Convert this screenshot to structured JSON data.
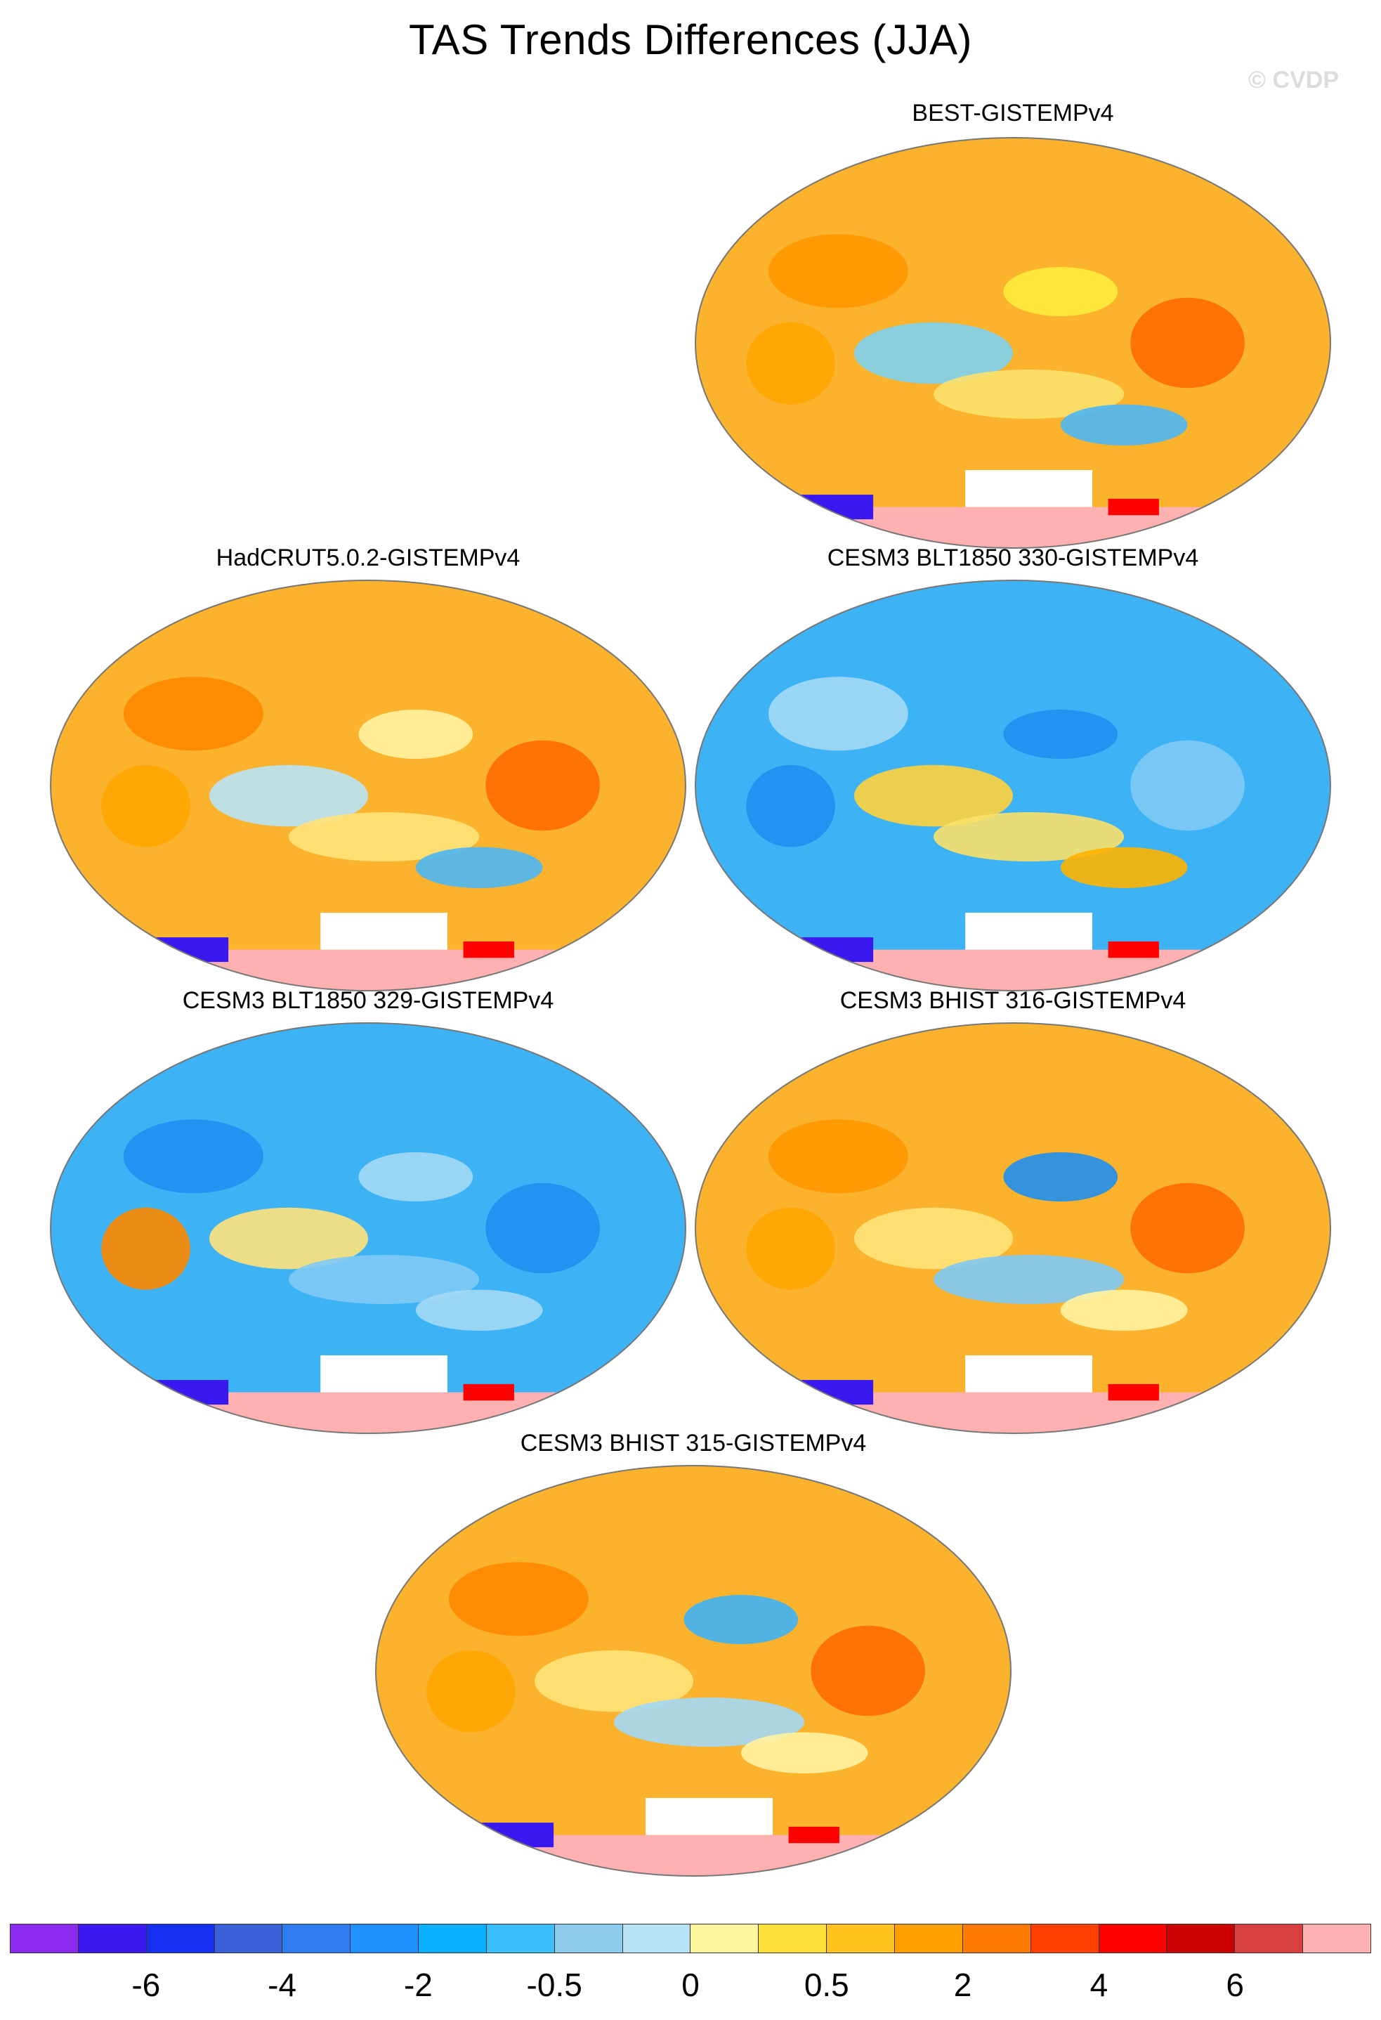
{
  "title": "TAS Trends Differences (JJA)",
  "watermark": "© CVDP",
  "chart_data": [
    {
      "type": "heatmap",
      "title": "BEST-GISTEMPv4",
      "overall_tendency": "warm",
      "fill": "#fbb22c",
      "patches": [
        {
          "c": "#ff9600"
        },
        {
          "c": "#ffeb3c"
        },
        {
          "c": "#7ed0f0"
        },
        {
          "c": "#ff6a00"
        },
        {
          "c": "#fbe06a"
        },
        {
          "c": "#ffa500"
        },
        {
          "c": "#4db7f5"
        }
      ]
    },
    {
      "type": "heatmap",
      "title": "HadCRUT5.0.2-GISTEMPv4",
      "overall_tendency": "warm",
      "fill": "#fbb22c",
      "patches": [
        {
          "c": "#ff8800"
        },
        {
          "c": "#fff2a0"
        },
        {
          "c": "#b8e2f5"
        },
        {
          "c": "#ff6a00"
        },
        {
          "c": "#ffe27a"
        },
        {
          "c": "#ffa500"
        },
        {
          "c": "#4db7f5"
        }
      ]
    },
    {
      "type": "heatmap",
      "title": "CESM3 BLT1850 330-GISTEMPv4",
      "overall_tendency": "cool",
      "fill": "#3db2f5",
      "patches": [
        {
          "c": "#a3d8f5"
        },
        {
          "c": "#1e8ff0"
        },
        {
          "c": "#ffd23c"
        },
        {
          "c": "#7ec9f5"
        },
        {
          "c": "#fbe06a"
        },
        {
          "c": "#1e8ff0"
        },
        {
          "c": "#ffb300"
        }
      ]
    },
    {
      "type": "heatmap",
      "title": "CESM3 BLT1850 329-GISTEMPv4",
      "overall_tendency": "cool",
      "fill": "#3db2f5",
      "patches": [
        {
          "c": "#1e8ff0"
        },
        {
          "c": "#a3d8f5"
        },
        {
          "c": "#ffe27a"
        },
        {
          "c": "#1e8ff0"
        },
        {
          "c": "#7ec9f5"
        },
        {
          "c": "#ff8800"
        },
        {
          "c": "#a3d8f5"
        }
      ]
    },
    {
      "type": "heatmap",
      "title": "CESM3 BHIST 316-GISTEMPv4",
      "overall_tendency": "warm",
      "fill": "#fbb22c",
      "patches": [
        {
          "c": "#ff9600"
        },
        {
          "c": "#1e8ff0"
        },
        {
          "c": "#ffe27a"
        },
        {
          "c": "#ff6a00"
        },
        {
          "c": "#7ec9f5"
        },
        {
          "c": "#ffa500"
        },
        {
          "c": "#fff2a0"
        }
      ]
    },
    {
      "type": "heatmap",
      "title": "CESM3 BHIST 315-GISTEMPv4",
      "overall_tendency": "warm",
      "fill": "#fbb22c",
      "patches": [
        {
          "c": "#ff8800"
        },
        {
          "c": "#3db2f5"
        },
        {
          "c": "#ffe27a"
        },
        {
          "c": "#ff6a00"
        },
        {
          "c": "#a3d8f5"
        },
        {
          "c": "#ffa500"
        },
        {
          "c": "#fff2a0"
        }
      ]
    }
  ],
  "colorbar": {
    "colors": [
      "#8b2bf0",
      "#3a19f0",
      "#1530f0",
      "#3a60d8",
      "#2f7cf0",
      "#1e90ff",
      "#0bafff",
      "#3cbef8",
      "#8ccbec",
      "#b8e2f5",
      "#fff5a0",
      "#ffe03a",
      "#ffc21e",
      "#ffa000",
      "#ff7b00",
      "#ff4000",
      "#ff0000",
      "#cc0000",
      "#d84040",
      "#ffb0b0"
    ],
    "labels": [
      "-6",
      "-4",
      "-2",
      "-0.5",
      "0",
      "0.5",
      "2",
      "4",
      "6"
    ]
  },
  "antarctic": {
    "land_color": "#ffb0b0",
    "mask_color": "#ffffff"
  }
}
